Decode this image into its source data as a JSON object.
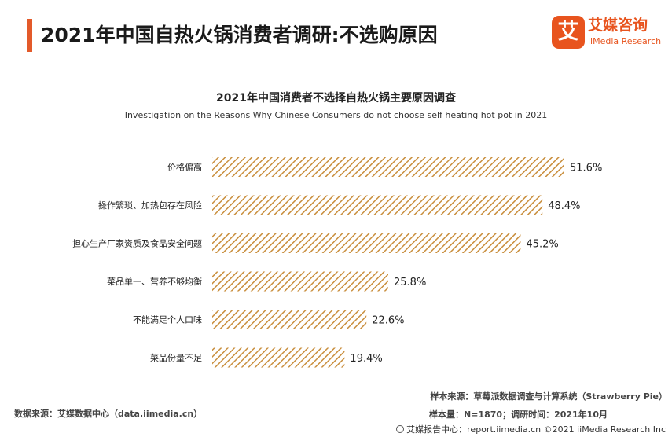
{
  "header": {
    "title": "2021年中国自热火锅消费者调研:不选购原因",
    "accent_color": "#e35a2a"
  },
  "logo": {
    "mark": "艾",
    "name_cn": "艾媒咨询",
    "name_en": "iiMedia Research",
    "color": "#e8541e"
  },
  "chart_data": {
    "type": "bar",
    "orientation": "horizontal",
    "title": "2021年中国消费者不选择自热火锅主要原因调查",
    "subtitle": "Investigation on the Reasons Why Chinese Consumers do not choose self heating hot pot in 2021",
    "categories": [
      "价格偏高",
      "操作繁琐、加热包存在风险",
      "担心生产厂家资质及食品安全问题",
      "菜品单一、营养不够均衡",
      "不能满足个人口味",
      "菜品份量不足"
    ],
    "values": [
      51.6,
      48.4,
      45.2,
      25.8,
      22.6,
      19.4
    ],
    "value_labels": [
      "51.6%",
      "48.4%",
      "45.2%",
      "25.8%",
      "22.6%",
      "19.4%"
    ],
    "unit": "%",
    "xlim": [
      0,
      51.6
    ],
    "bar_fill": "hatched",
    "bar_color": "#c98e3c",
    "grid": false,
    "legend": "none"
  },
  "notes": {
    "source_left": "数据来源：艾媒数据中心（data.iimedia.cn）",
    "sample_source": "样本来源：草莓派数据调查与计算系统（Strawberry Pie）",
    "sample_size": "样本量：N=1870；调研时间：2021年10月"
  },
  "footer": {
    "text": "艾媒报告中心：report.iimedia.cn  ©2021  iiMedia Research  Inc"
  }
}
